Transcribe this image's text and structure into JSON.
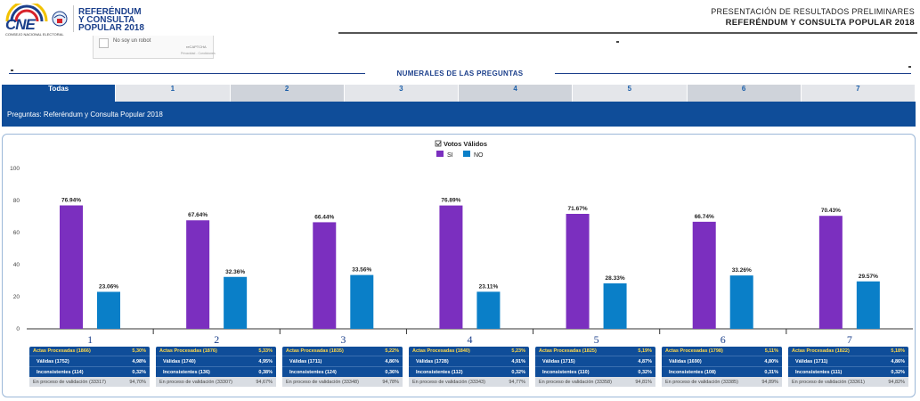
{
  "header": {
    "logo_text": "CNE",
    "logo_sub": "CONSEJO NACIONAL ELECTORAL",
    "title_line1": "REFERÉNDUM",
    "title_line2": "Y CONSULTA",
    "title_line3": "POPULAR 2018",
    "right_line1": "PRESENTACIÓN DE RESULTADOS PRELIMINARES",
    "right_line2": "REFERÉNDUM Y CONSULTA POPULAR 2018"
  },
  "captcha": {
    "label": "No soy un robot",
    "brand": "reCAPTCHA",
    "small": "Privacidad - Condiciones"
  },
  "section_title": "NUMERALES DE LAS PREGUNTAS",
  "tabs": [
    {
      "label": "Todas"
    },
    {
      "label": "1"
    },
    {
      "label": "2"
    },
    {
      "label": "3"
    },
    {
      "label": "4"
    },
    {
      "label": "5"
    },
    {
      "label": "6"
    },
    {
      "label": "7"
    }
  ],
  "subtitle": "Preguntas: Referéndum y Consulta Popular 2018",
  "colors": {
    "si": "#7b2fbf",
    "no": "#0a7fc8",
    "navy": "#0f4d99"
  },
  "chart_data": {
    "type": "bar",
    "title": "Votos Válidos",
    "categories": [
      "1",
      "2",
      "3",
      "4",
      "5",
      "6",
      "7"
    ],
    "series": [
      {
        "name": "SI",
        "values": [
          76.94,
          67.64,
          66.44,
          76.89,
          71.67,
          66.74,
          70.43
        ],
        "labels": [
          "76.94%",
          "67.64%",
          "66.44%",
          "76.89%",
          "71.67%",
          "66.74%",
          "70.43%"
        ]
      },
      {
        "name": "NO",
        "values": [
          23.06,
          32.36,
          33.56,
          23.11,
          28.33,
          33.26,
          29.57
        ],
        "labels": [
          "23.06%",
          "32.36%",
          "33.56%",
          "23.11%",
          "28.33%",
          "33.26%",
          "29.57%"
        ]
      }
    ],
    "ylim": [
      0,
      100
    ],
    "yticks": [
      "0",
      "20",
      "40",
      "60",
      "80",
      "100"
    ],
    "legend": "top-center",
    "grid": false
  },
  "info_tables": [
    {
      "actas": "Actas Procesadas (1866)",
      "actas_pct": "5,30%",
      "validas": "Válidas (1752)",
      "validas_pct": "4,98%",
      "inconsistentes": "Inconsistentes (114)",
      "inconsistentes_pct": "0,32%",
      "validacion": "En proceso de validación (33317)",
      "validacion_pct": "94,70%"
    },
    {
      "actas": "Actas Procesadas (1876)",
      "actas_pct": "5,33%",
      "validas": "Válidas (1740)",
      "validas_pct": "4,95%",
      "inconsistentes": "Inconsistentes (136)",
      "inconsistentes_pct": "0,38%",
      "validacion": "En proceso de validación (33307)",
      "validacion_pct": "94,67%"
    },
    {
      "actas": "Actas Procesadas (1835)",
      "actas_pct": "5,22%",
      "validas": "Válidas (1711)",
      "validas_pct": "4,86%",
      "inconsistentes": "Inconsistentes (124)",
      "inconsistentes_pct": "0,36%",
      "validacion": "En proceso de validación (33348)",
      "validacion_pct": "94,78%"
    },
    {
      "actas": "Actas Procesadas (1840)",
      "actas_pct": "5,23%",
      "validas": "Válidas (1728)",
      "validas_pct": "4,91%",
      "inconsistentes": "Inconsistentes (112)",
      "inconsistentes_pct": "0,32%",
      "validacion": "En proceso de validación (33343)",
      "validacion_pct": "94,77%"
    },
    {
      "actas": "Actas Procesadas (1825)",
      "actas_pct": "5,19%",
      "validas": "Válidas (1715)",
      "validas_pct": "4,87%",
      "inconsistentes": "Inconsistentes (110)",
      "inconsistentes_pct": "0,32%",
      "validacion": "En proceso de validación (33358)",
      "validacion_pct": "94,81%"
    },
    {
      "actas": "Actas Procesadas (1798)",
      "actas_pct": "5,11%",
      "validas": "Válidas (1690)",
      "validas_pct": "4,80%",
      "inconsistentes": "Inconsistentes (108)",
      "inconsistentes_pct": "0,31%",
      "validacion": "En proceso de validación (33385)",
      "validacion_pct": "94,89%"
    },
    {
      "actas": "Actas Procesadas (1822)",
      "actas_pct": "5,18%",
      "validas": "Válidas (1711)",
      "validas_pct": "4,86%",
      "inconsistentes": "Inconsistentes (111)",
      "inconsistentes_pct": "0,32%",
      "validacion": "En proceso de validación (33361)",
      "validacion_pct": "94,82%"
    }
  ]
}
